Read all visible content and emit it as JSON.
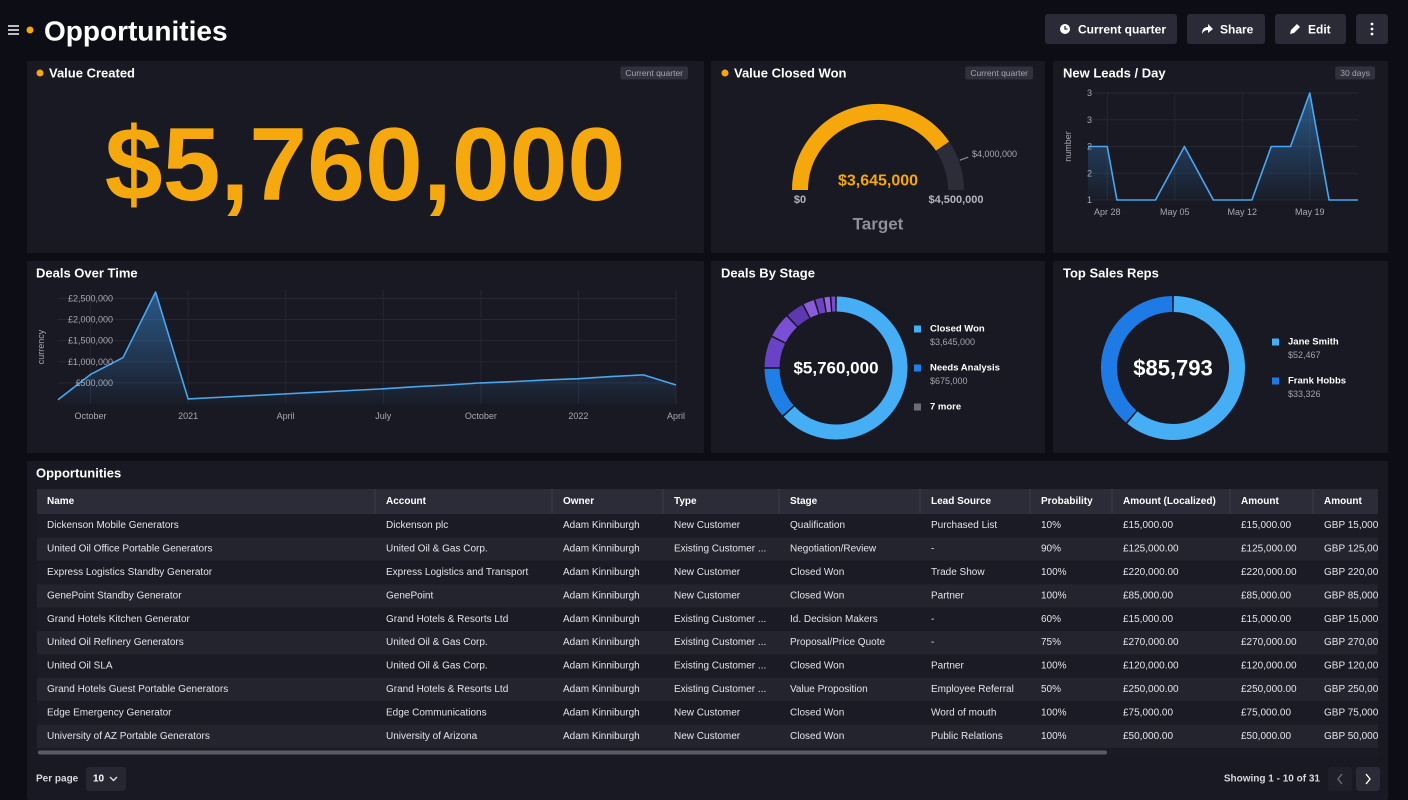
{
  "header": {
    "title": "Opportunities",
    "buttons": [
      "Current quarter",
      "Share",
      "Edit"
    ]
  },
  "value_created": {
    "title": "Value Created",
    "tag": "Current quarter",
    "value": "$5,760,000"
  },
  "value_closed_won": {
    "title": "Value Closed Won",
    "tag": "Current quarter",
    "chart_data": {
      "type": "gauge",
      "min": 0,
      "max": 4500000,
      "value": 3645000,
      "target": 4000000,
      "min_label": "$0",
      "max_label": "$4,500,000",
      "value_label": "$3,645,000",
      "target_label": "$4,000,000",
      "caption": "Target",
      "color": "#f5a70c"
    }
  },
  "new_leads": {
    "title": "New Leads / Day",
    "tag": "30 days",
    "chart_data": {
      "type": "area",
      "y_label": "number",
      "x": [
        "Apr 26",
        "Apr 28",
        "Apr 29",
        "May 03",
        "May 06",
        "May 09",
        "May 13",
        "May 15",
        "May 17",
        "May 19",
        "May 21",
        "May 24"
      ],
      "values": [
        2,
        2,
        1,
        1,
        2,
        1,
        1,
        2,
        2,
        3,
        1,
        1
      ],
      "xlim": [
        "Apr 26",
        "May 24"
      ],
      "xticks": [
        "Apr 28",
        "May 05",
        "May 12",
        "May 19"
      ],
      "ylim": [
        1,
        3
      ],
      "yticks": [
        1,
        {
          "value": 1.5,
          "label": "2"
        },
        2,
        {
          "value": 2.5,
          "label": "3"
        },
        3
      ],
      "color": "#4aa6f0"
    }
  },
  "deals_over_time": {
    "title": "Deals Over Time",
    "chart_data": {
      "type": "area",
      "y_label": "currency",
      "x": [
        "2020-09",
        "2020-10",
        "2020-11",
        "2020-12",
        "2021-01",
        "2021-02",
        "2021-03",
        "2021-04",
        "2021-05",
        "2021-06",
        "2021-07",
        "2021-08",
        "2021-09",
        "2021-10",
        "2021-11",
        "2021-12",
        "2022-01",
        "2022-02",
        "2022-03",
        "2022-04"
      ],
      "values": [
        100000,
        700000,
        1100000,
        2650000,
        120000,
        160000,
        200000,
        240000,
        280000,
        320000,
        360000,
        410000,
        450000,
        500000,
        530000,
        570000,
        600000,
        650000,
        690000,
        450000
      ],
      "xlim": [
        "2020-09",
        "2022-04"
      ],
      "xticks": [
        {
          "value": "2020-10",
          "label": "October"
        },
        {
          "value": "2021-01",
          "label": "2021"
        },
        {
          "value": "2021-04",
          "label": "April"
        },
        {
          "value": "2021-07",
          "label": "July"
        },
        {
          "value": "2021-10",
          "label": "October"
        },
        {
          "value": "2022-01",
          "label": "2022"
        },
        {
          "value": "2022-04",
          "label": "April"
        }
      ],
      "ylim": [
        0,
        2700000
      ],
      "yticks": [
        {
          "value": 500000,
          "label": "£500,000"
        },
        {
          "value": 1000000,
          "label": "£1,000,000"
        },
        {
          "value": 1500000,
          "label": "£1,500,000"
        },
        {
          "value": 2000000,
          "label": "£2,000,000"
        },
        {
          "value": 2500000,
          "label": "£2,500,000"
        }
      ],
      "color": "#4aa6f0"
    }
  },
  "deals_by_stage": {
    "title": "Deals By Stage",
    "chart_data": {
      "type": "donut",
      "center_label": "$5,760,000",
      "categories": [
        "Closed Won",
        "Needs Analysis"
      ],
      "values": [
        3645000,
        675000
      ],
      "value_labels": [
        "$3,645,000",
        "$675,000"
      ],
      "colors": [
        "#45aef5",
        "#1f7fe8"
      ],
      "other_label": "7 more",
      "other_color": "#6b6c78",
      "other_values": [
        420000,
        330000,
        250000,
        160000,
        120000,
        90000,
        70000
      ],
      "other_colors": [
        "#6a42c6",
        "#7b4fd4",
        "#5d38b0",
        "#8a5cdc",
        "#6c44c0",
        "#9466e0",
        "#7a4ad0"
      ]
    }
  },
  "top_sales_reps": {
    "title": "Top Sales Reps",
    "chart_data": {
      "type": "donut",
      "center_label": "$85,793",
      "categories": [
        "Jane Smith",
        "Frank Hobbs"
      ],
      "values": [
        52467,
        33326
      ],
      "value_labels": [
        "$52,467",
        "$33,326"
      ],
      "colors": [
        "#45aef5",
        "#1e7be6"
      ]
    }
  },
  "table": {
    "title": "Opportunities",
    "columns": [
      "Name",
      "Account",
      "Owner",
      "Type",
      "Stage",
      "Lead Source",
      "Probability",
      "Amount (Localized)",
      "Amount",
      "Amount"
    ],
    "rows": [
      [
        "Dickenson Mobile Generators",
        "Dickenson plc",
        "Adam Kinniburgh",
        "New Customer",
        "Qualification",
        "Purchased List",
        "10%",
        "£15,000.00",
        "£15,000.00",
        "GBP 15,000."
      ],
      [
        "United Oil Office Portable Generators",
        "United Oil & Gas Corp.",
        "Adam Kinniburgh",
        "Existing Customer ...",
        "Negotiation/Review",
        "-",
        "90%",
        "£125,000.00",
        "£125,000.00",
        "GBP 125,000"
      ],
      [
        "Express Logistics Standby Generator",
        "Express Logistics and Transport",
        "Adam Kinniburgh",
        "New Customer",
        "Closed Won",
        "Trade Show",
        "100%",
        "£220,000.00",
        "£220,000.00",
        "GBP 220,00"
      ],
      [
        "GenePoint Standby Generator",
        "GenePoint",
        "Adam Kinniburgh",
        "New Customer",
        "Closed Won",
        "Partner",
        "100%",
        "£85,000.00",
        "£85,000.00",
        "GBP 85,000"
      ],
      [
        "Grand Hotels Kitchen Generator",
        "Grand Hotels & Resorts Ltd",
        "Adam Kinniburgh",
        "Existing Customer ...",
        "Id. Decision Makers",
        "-",
        "60%",
        "£15,000.00",
        "£15,000.00",
        "GBP 15,000."
      ],
      [
        "United Oil Refinery Generators",
        "United Oil & Gas Corp.",
        "Adam Kinniburgh",
        "Existing Customer ...",
        "Proposal/Price Quote",
        "-",
        "75%",
        "£270,000.00",
        "£270,000.00",
        "GBP 270,00"
      ],
      [
        "United Oil SLA",
        "United Oil & Gas Corp.",
        "Adam Kinniburgh",
        "Existing Customer ...",
        "Closed Won",
        "Partner",
        "100%",
        "£120,000.00",
        "£120,000.00",
        "GBP 120,00"
      ],
      [
        "Grand Hotels Guest Portable Generators",
        "Grand Hotels & Resorts Ltd",
        "Adam Kinniburgh",
        "Existing Customer ...",
        "Value Proposition",
        "Employee Referral",
        "50%",
        "£250,000.00",
        "£250,000.00",
        "GBP 250,00"
      ],
      [
        "Edge Emergency Generator",
        "Edge Communications",
        "Adam Kinniburgh",
        "New Customer",
        "Closed Won",
        "Word of mouth",
        "100%",
        "£75,000.00",
        "£75,000.00",
        "GBP 75,000"
      ],
      [
        "University of AZ Portable Generators",
        "University of Arizona",
        "Adam Kinniburgh",
        "New Customer",
        "Closed Won",
        "Public Relations",
        "100%",
        "£50,000.00",
        "£50,000.00",
        "GBP 50,000"
      ]
    ]
  },
  "footer": {
    "per_page_label": "Per page",
    "per_page": "10",
    "showing": "Showing 1 - 10 of 31"
  }
}
